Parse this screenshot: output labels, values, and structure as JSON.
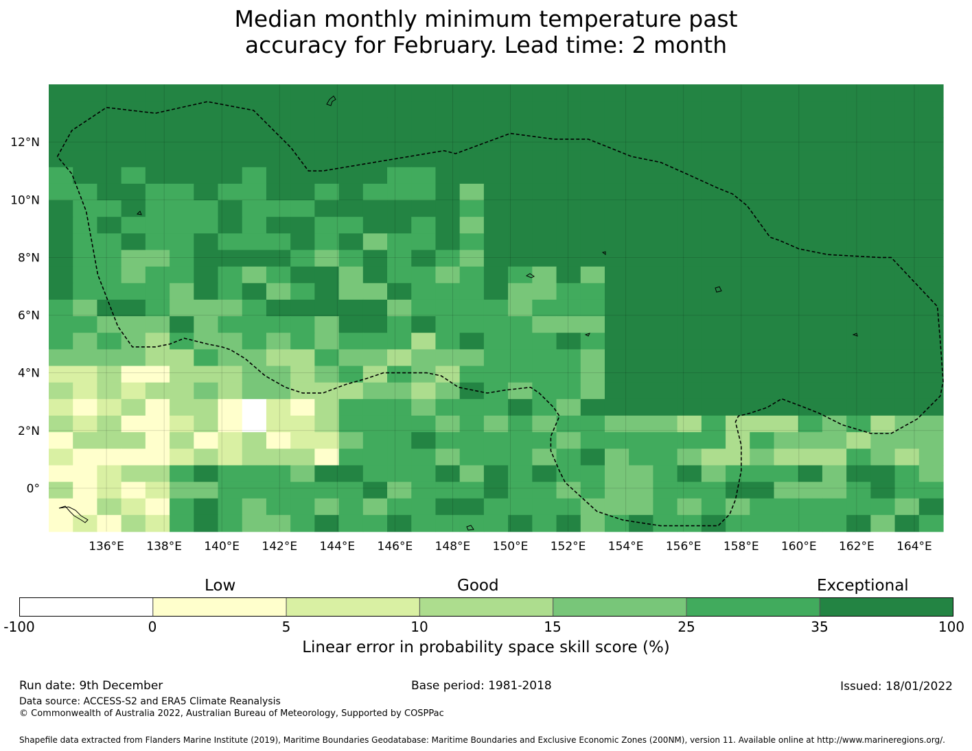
{
  "title": {
    "line1": "Median monthly minimum temperature past",
    "line2": "accuracy for February. Lead time: 2 month"
  },
  "map": {
    "lon_range": [
      134,
      165
    ],
    "lat_range": [
      -1.5,
      14
    ],
    "lon_ticks": [
      "136°E",
      "138°E",
      "140°E",
      "142°E",
      "144°E",
      "146°E",
      "148°E",
      "150°E",
      "152°E",
      "154°E",
      "156°E",
      "158°E",
      "160°E",
      "162°E",
      "164°E"
    ],
    "lat_ticks": [
      "12°N",
      "10°N",
      "8°N",
      "6°N",
      "4°N",
      "2°N",
      "0°"
    ],
    "eez_boundary_lonlat": [
      [
        134.3,
        11.5
      ],
      [
        134.8,
        12.4
      ],
      [
        136,
        13.2
      ],
      [
        137.7,
        13
      ],
      [
        139.5,
        13.4
      ],
      [
        141.1,
        13.1
      ],
      [
        142.4,
        11.8
      ],
      [
        143.0,
        11.0
      ],
      [
        143.5,
        11.0
      ],
      [
        147.7,
        11.7
      ],
      [
        148.1,
        11.6
      ],
      [
        150.0,
        12.3
      ],
      [
        151.5,
        12.1
      ],
      [
        152.0,
        12.1
      ],
      [
        152.7,
        12.1
      ],
      [
        154.2,
        11.5
      ],
      [
        155.2,
        11.3
      ],
      [
        156.1,
        10.9
      ],
      [
        157.2,
        10.4
      ],
      [
        157.7,
        10.2
      ],
      [
        158.2,
        9.8
      ],
      [
        159.0,
        8.7
      ],
      [
        159.3,
        8.6
      ],
      [
        160.0,
        8.3
      ],
      [
        161.0,
        8.1
      ],
      [
        162.8,
        8.0
      ],
      [
        163.2,
        8.0
      ],
      [
        164.8,
        6.3
      ],
      [
        164.9,
        5.1
      ],
      [
        165.0,
        3.7
      ],
      [
        164.9,
        3.2
      ],
      [
        164.1,
        2.4
      ],
      [
        163.2,
        1.9
      ],
      [
        162.5,
        1.9
      ],
      [
        161.5,
        2.2
      ],
      [
        160.7,
        2.6
      ],
      [
        160.2,
        2.8
      ],
      [
        159.4,
        3.1
      ],
      [
        158.9,
        2.8
      ],
      [
        158.3,
        2.6
      ],
      [
        157.9,
        2.5
      ],
      [
        157.8,
        2.3
      ],
      [
        158.0,
        1.5
      ],
      [
        158.0,
        0.6
      ],
      [
        157.8,
        -0.4
      ],
      [
        157.6,
        -0.9
      ],
      [
        157.2,
        -1.3
      ],
      [
        155.2,
        -1.3
      ],
      [
        153.9,
        -1.1
      ],
      [
        153.0,
        -0.8
      ],
      [
        151.9,
        0.2
      ],
      [
        151.7,
        0.6
      ],
      [
        151.4,
        1.3
      ],
      [
        151.4,
        1.8
      ],
      [
        151.7,
        2.5
      ],
      [
        151.5,
        2.8
      ],
      [
        151.0,
        3.3
      ],
      [
        150.7,
        3.5
      ],
      [
        149.8,
        3.4
      ],
      [
        149.2,
        3.3
      ],
      [
        148.2,
        3.5
      ],
      [
        147.6,
        3.9
      ],
      [
        147.1,
        4.0
      ],
      [
        146.5,
        4.0
      ],
      [
        145.6,
        4.0
      ],
      [
        145.0,
        3.8
      ],
      [
        144.3,
        3.6
      ],
      [
        143.5,
        3.3
      ],
      [
        142.8,
        3.3
      ],
      [
        142.2,
        3.5
      ],
      [
        141.5,
        3.9
      ],
      [
        140.8,
        4.5
      ],
      [
        140.3,
        4.8
      ],
      [
        140.0,
        4.9
      ],
      [
        139.5,
        5.0
      ],
      [
        138.7,
        5.2
      ],
      [
        138.2,
        5.0
      ],
      [
        137.7,
        4.9
      ],
      [
        136.9,
        4.9
      ],
      [
        136.4,
        5.6
      ],
      [
        135.7,
        7.4
      ],
      [
        135.3,
        9.6
      ],
      [
        134.8,
        10.9
      ],
      [
        134.3,
        11.5
      ]
    ]
  },
  "colorbar": {
    "categories": [
      "Low",
      "Good",
      "Exceptional"
    ],
    "tick_labels": [
      "-100",
      "0",
      "5",
      "10",
      "15",
      "25",
      "35",
      "100"
    ],
    "colors": [
      "#ffffff",
      "#ffffcc",
      "#d9f0a3",
      "#addd8e",
      "#78c679",
      "#41ab5d",
      "#238443"
    ],
    "label": "Linear error in probability space skill score (%)"
  },
  "footer": {
    "run_date": "Run date: 9th December",
    "base_period": "Base period: 1981-2018",
    "issued": "Issued: 18/01/2022",
    "data_source": "Data source: ACCESS-S2 and ERA5 Climate Reanalysis",
    "copyright": "© Commonwealth of Australia 2022, Australian Bureau of Meteorology, Supported by COSPPac",
    "shapefile": "Shapefile data extracted from Flanders Marine Institute (2019), Maritime Boundaries Geodatabase: Maritime Boundaries and Exclusive Economic Zones (200NM), version 11. Available online at http://www.marineregions.org/."
  }
}
